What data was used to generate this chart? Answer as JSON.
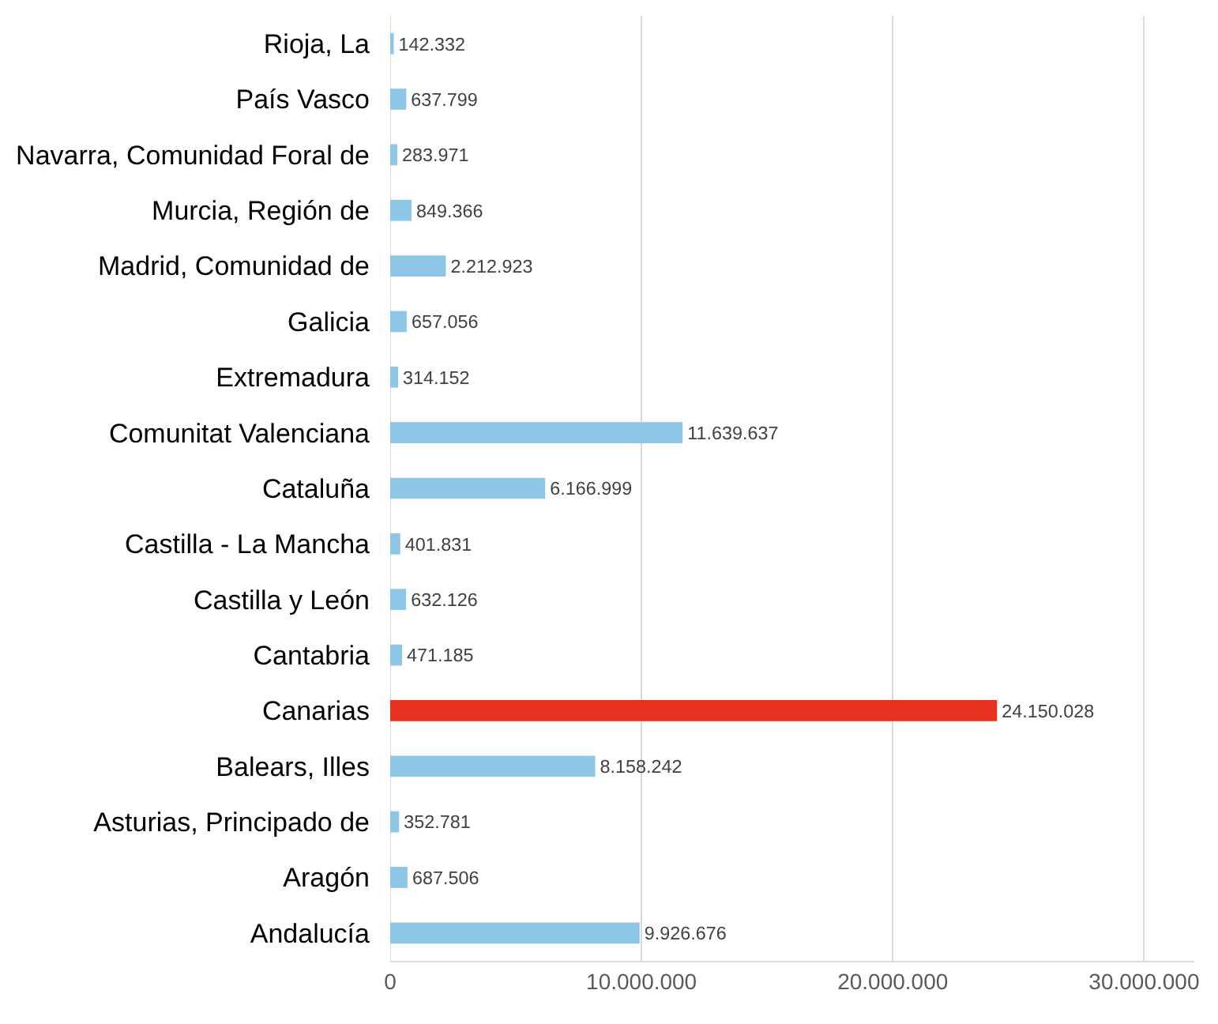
{
  "chart_data": {
    "type": "bar",
    "orientation": "horizontal",
    "categories": [
      "Rioja, La",
      "País Vasco",
      "Navarra, Comunidad Foral de",
      "Murcia, Región de",
      "Madrid, Comunidad de",
      "Galicia",
      "Extremadura",
      "Comunitat Valenciana",
      "Cataluña",
      "Castilla - La Mancha",
      "Castilla y León",
      "Cantabria",
      "Canarias",
      "Balears, Illes",
      "Asturias, Principado de",
      "Aragón",
      "Andalucía"
    ],
    "values": [
      142332,
      637799,
      283971,
      849366,
      2212923,
      657056,
      314152,
      11639637,
      6166999,
      401831,
      632126,
      471185,
      24150028,
      8158242,
      352781,
      687506,
      9926676
    ],
    "value_labels": [
      "142.332",
      "637.799",
      "283.971",
      "849.366",
      "2.212.923",
      "657.056",
      "314.152",
      "11.639.637",
      "6.166.999",
      "401.831",
      "632.126",
      "471.185",
      "24.150.028",
      "8.158.242",
      "352.781",
      "687.506",
      "9.926.676"
    ],
    "colors": [
      "#8ec6e8",
      "#8ec6e8",
      "#8ec6e8",
      "#8ec6e8",
      "#8ec6e8",
      "#8ec6e8",
      "#8ec6e8",
      "#8ec6e8",
      "#8ec6e8",
      "#8ec6e8",
      "#8ec6e8",
      "#8ec6e8",
      "#e8311f",
      "#8ec6e8",
      "#8ec6e8",
      "#8ec6e8",
      "#8ec6e8"
    ],
    "xlim": [
      0,
      32000000
    ],
    "xticks": [
      0,
      {
        "value": 10000000,
        "label": "10.000.000"
      },
      {
        "value": 20000000,
        "label": "20.000.000"
      },
      {
        "value": 30000000,
        "label": "30.000.000"
      }
    ],
    "grid": "x"
  }
}
